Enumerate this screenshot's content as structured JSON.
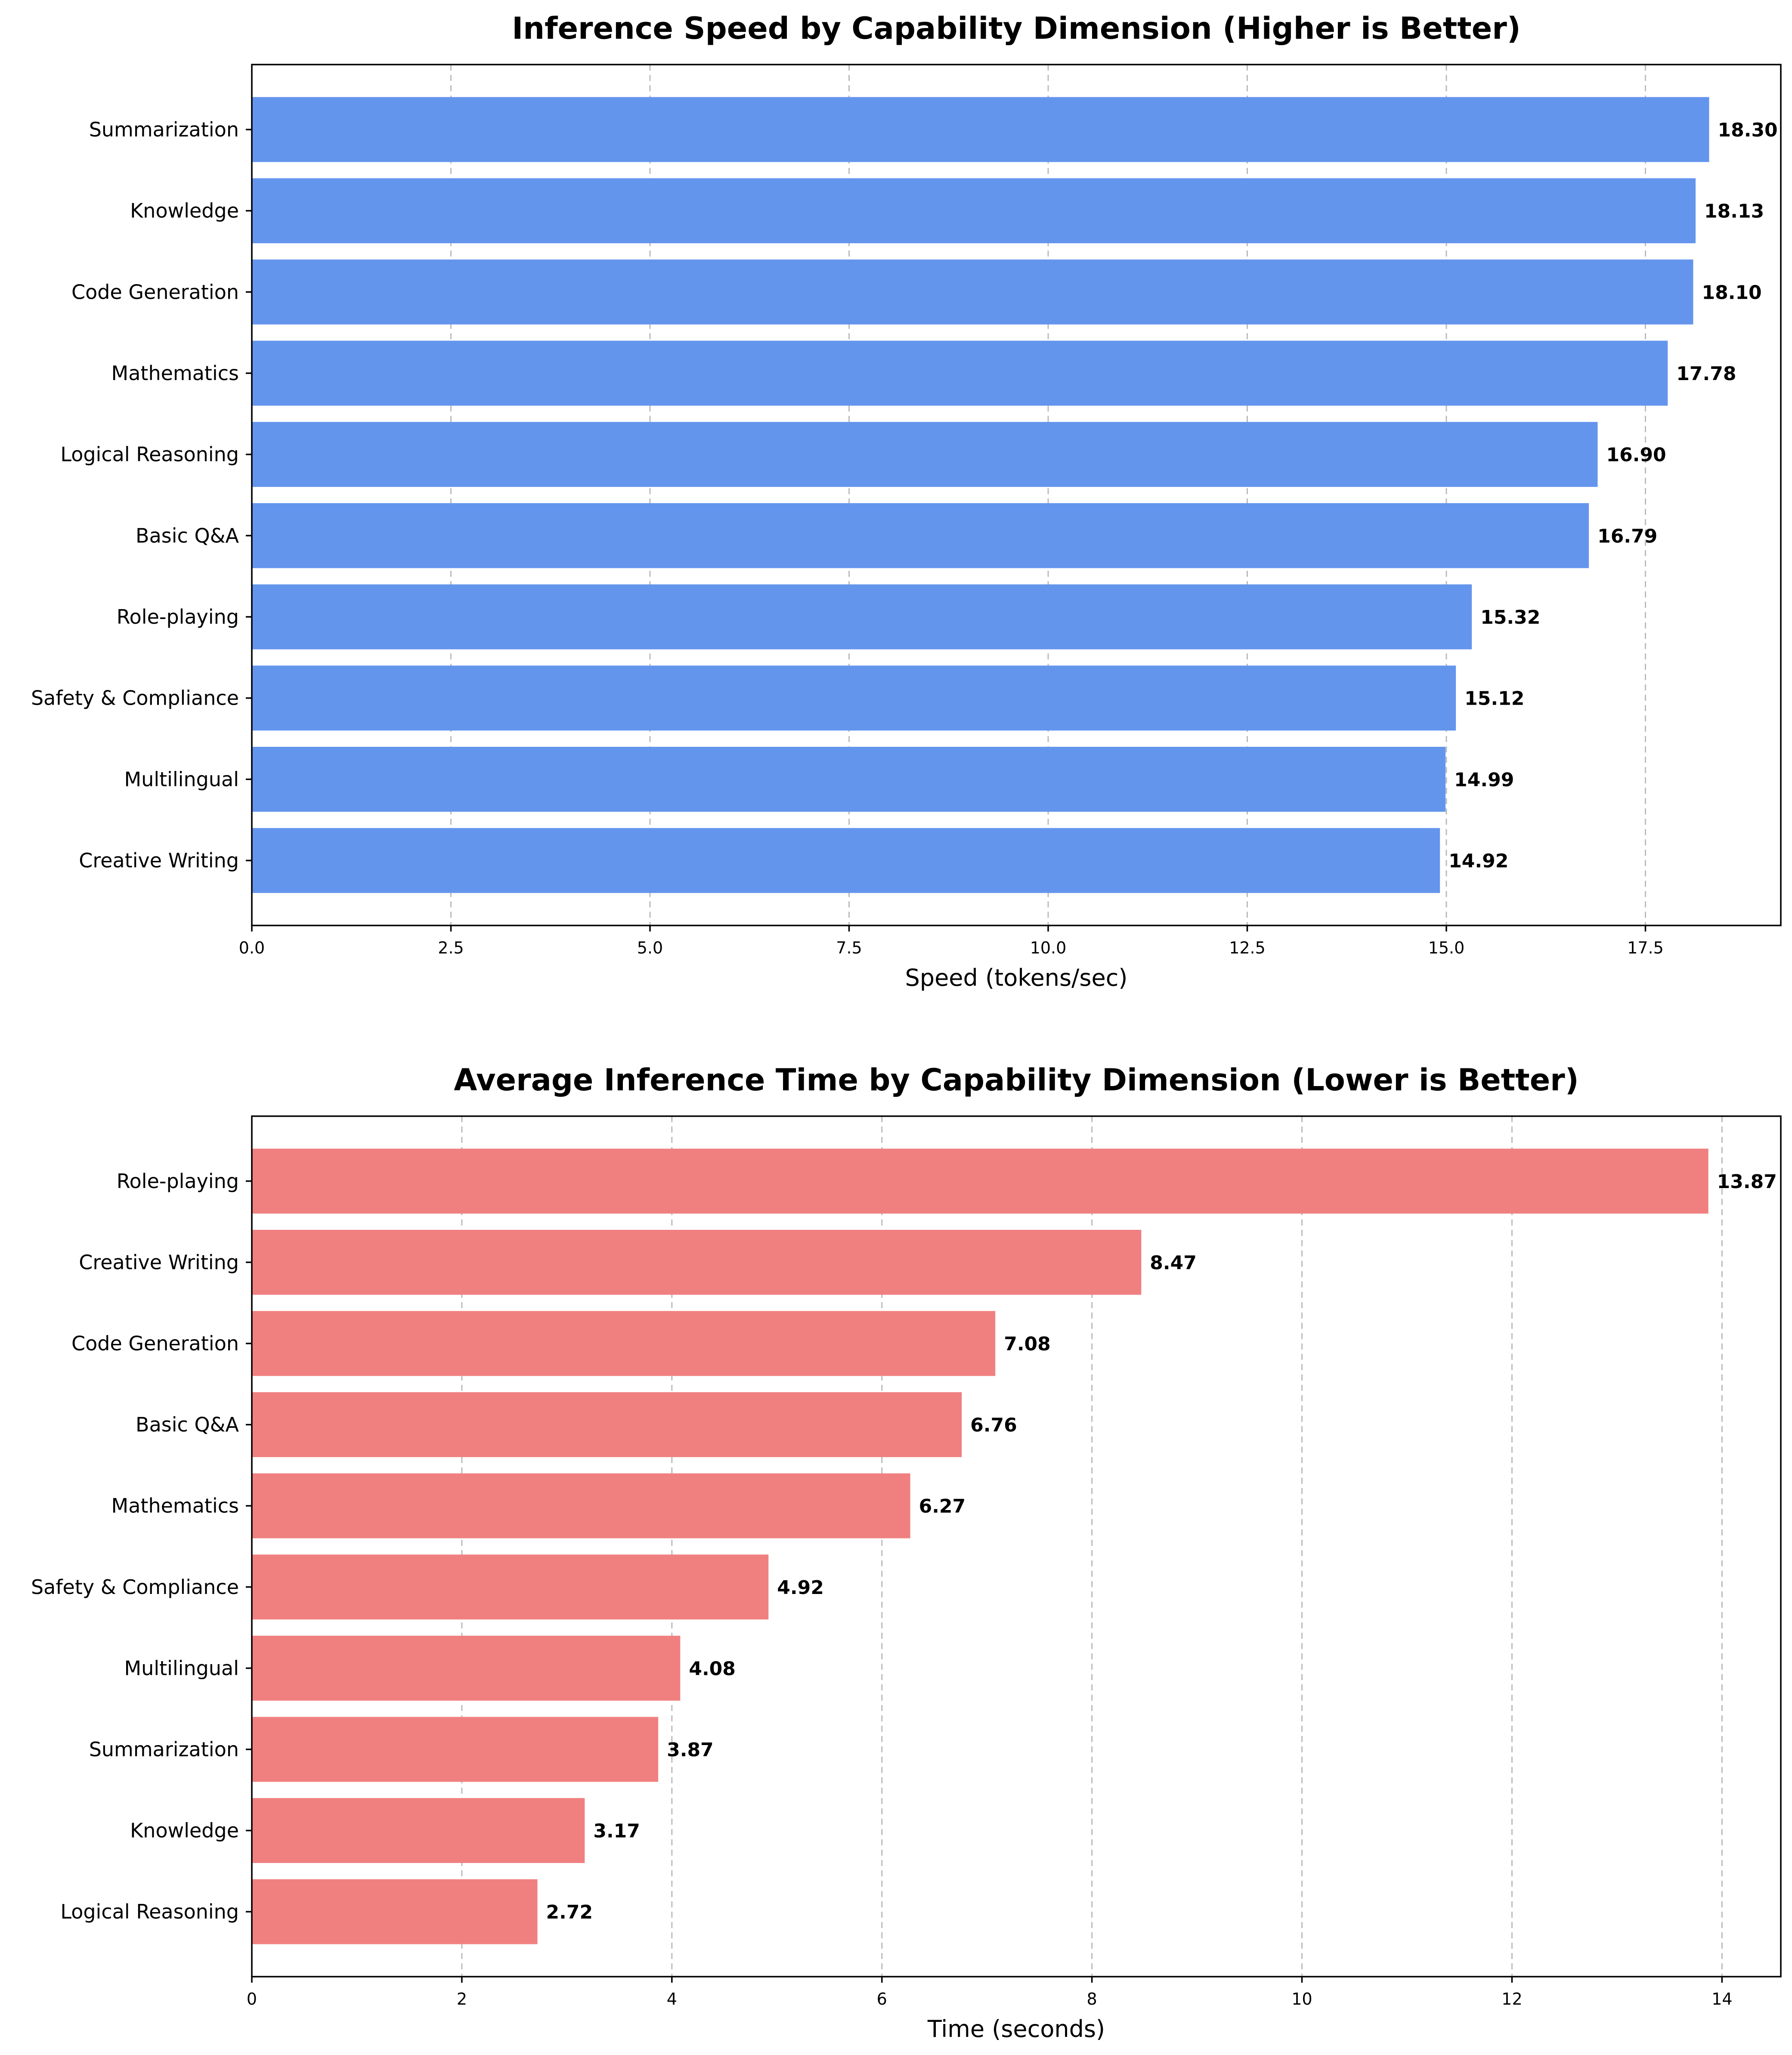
{
  "chart_data": [
    {
      "type": "bar",
      "orientation": "horizontal",
      "title": "Inference Speed by Capability Dimension (Higher is Better)",
      "xlabel": "Speed (tokens/sec)",
      "ylabel": "",
      "xlim": [
        0,
        19.2
      ],
      "xticks": [
        0,
        2.5,
        5,
        7.5,
        10,
        12.5,
        15,
        17.5
      ],
      "xtick_labels": [
        "0.0",
        "2.5",
        "5.0",
        "7.5",
        "10.0",
        "12.5",
        "15.0",
        "17.5"
      ],
      "grid": "x, dashed",
      "color": "#6495ED",
      "categories": [
        "Summarization",
        "Knowledge",
        "Code Generation",
        "Mathematics",
        "Logical Reasoning",
        "Basic Q&A",
        "Role-playing",
        "Safety & Compliance",
        "Multilingual",
        "Creative Writing"
      ],
      "values": [
        18.3,
        18.13,
        18.1,
        17.78,
        16.9,
        16.79,
        15.32,
        15.12,
        14.99,
        14.92
      ],
      "value_labels": [
        "18.30",
        "18.13",
        "18.10",
        "17.78",
        "16.90",
        "16.79",
        "15.32",
        "15.12",
        "14.99",
        "14.92"
      ]
    },
    {
      "type": "bar",
      "orientation": "horizontal",
      "title": "Average Inference Time by Capability Dimension (Lower is Better)",
      "xlabel": "Time (seconds)",
      "ylabel": "",
      "xlim": [
        0,
        14.56
      ],
      "xticks": [
        0,
        2,
        4,
        6,
        8,
        10,
        12,
        14
      ],
      "xtick_labels": [
        "0",
        "2",
        "4",
        "6",
        "8",
        "10",
        "12",
        "14"
      ],
      "grid": "x, dashed",
      "color": "#F08080",
      "categories": [
        "Role-playing",
        "Creative Writing",
        "Code Generation",
        "Basic Q&A",
        "Mathematics",
        "Safety & Compliance",
        "Multilingual",
        "Summarization",
        "Knowledge",
        "Logical Reasoning"
      ],
      "values": [
        13.87,
        8.47,
        7.08,
        6.76,
        6.27,
        4.92,
        4.08,
        3.87,
        3.17,
        2.72
      ],
      "value_labels": [
        "13.87",
        "8.47",
        "7.08",
        "6.76",
        "6.27",
        "4.92",
        "4.08",
        "3.87",
        "3.17",
        "2.72"
      ]
    }
  ]
}
